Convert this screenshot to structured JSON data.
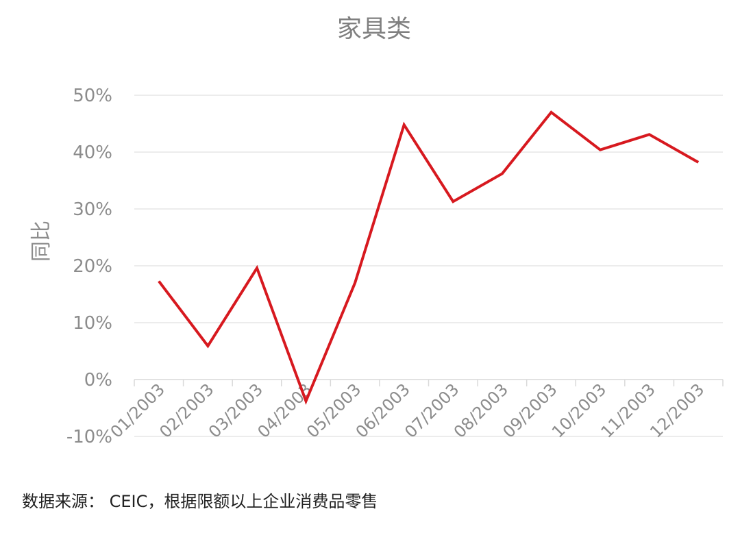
{
  "chart_data": {
    "type": "line",
    "title": "家具类",
    "ylabel": "同比",
    "xlabel": "",
    "categories": [
      "01/2003",
      "02/2003",
      "03/2003",
      "04/2003",
      "05/2003",
      "06/2003",
      "07/2003",
      "08/2003",
      "09/2003",
      "10/2003",
      "11/2003",
      "12/2003"
    ],
    "series": [
      {
        "values": [
          17.3,
          5.9,
          19.6,
          -3.8,
          17.0,
          44.8,
          31.3,
          36.2,
          47.0,
          40.4,
          43.1,
          38.2
        ]
      }
    ],
    "yticks": [
      "-10%",
      "0%",
      "10%",
      "20%",
      "30%",
      "40%",
      "50%"
    ],
    "ylim": [
      -10,
      50
    ],
    "grid": true,
    "legend": "none",
    "line_color": "#d7191f"
  },
  "footer": {
    "source": "数据来源： CEIC，根据限额以上企业消费品零售"
  }
}
